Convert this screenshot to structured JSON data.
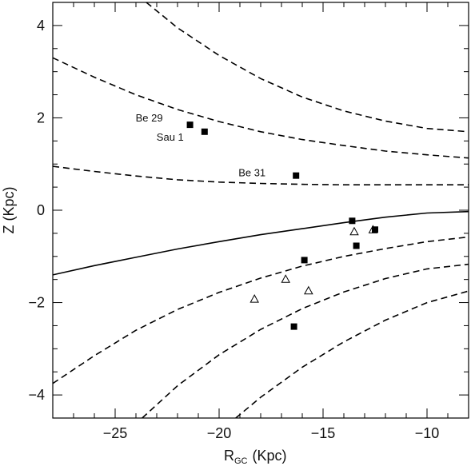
{
  "chart_data": {
    "type": "scatter",
    "x_axis": {
      "label_main": "R",
      "label_sub": "GC",
      "label_unit": "(Kpc)",
      "range": [
        -28,
        -8
      ],
      "tick_labels": [
        "−25",
        "−20",
        "−15",
        "−10"
      ],
      "tick_values": [
        -25,
        -20,
        -15,
        -10
      ]
    },
    "y_axis": {
      "label": "Z (Kpc)",
      "range": [
        -4.5,
        4.5
      ],
      "tick_labels": [
        "4",
        "2",
        "0",
        "−2",
        "−4"
      ],
      "tick_values": [
        4,
        2,
        0,
        -2,
        -4
      ]
    },
    "grid": false,
    "series": [
      {
        "marker": "filled-square",
        "points": [
          {
            "x": -21.4,
            "y": 1.85,
            "label": "Be 29"
          },
          {
            "x": -20.7,
            "y": 1.7,
            "label": "Sau 1"
          },
          {
            "x": -16.3,
            "y": 0.75,
            "label": "Be 31"
          },
          {
            "x": -13.6,
            "y": -0.23,
            "label": ""
          },
          {
            "x": -12.5,
            "y": -0.42,
            "label": ""
          },
          {
            "x": -13.4,
            "y": -0.77,
            "label": ""
          },
          {
            "x": -15.9,
            "y": -1.08,
            "label": ""
          },
          {
            "x": -16.4,
            "y": -2.52,
            "label": ""
          }
        ]
      },
      {
        "marker": "open-triangle",
        "points": [
          {
            "x": -13.5,
            "y": -0.47
          },
          {
            "x": -12.6,
            "y": -0.43
          },
          {
            "x": -16.8,
            "y": -1.5
          },
          {
            "x": -15.7,
            "y": -1.75
          },
          {
            "x": -18.3,
            "y": -1.93
          }
        ]
      }
    ],
    "curves": [
      {
        "style": "solid",
        "points": [
          [
            -28,
            -1.4
          ],
          [
            -26,
            -1.2
          ],
          [
            -24,
            -1.02
          ],
          [
            -22,
            -0.84
          ],
          [
            -20,
            -0.68
          ],
          [
            -18,
            -0.53
          ],
          [
            -16,
            -0.4
          ],
          [
            -14,
            -0.27
          ],
          [
            -12,
            -0.15
          ],
          [
            -10,
            -0.06
          ],
          [
            -8,
            -0.03
          ]
        ]
      },
      {
        "style": "dashed",
        "points": [
          [
            -28,
            0.95
          ],
          [
            -26,
            0.84
          ],
          [
            -24,
            0.74
          ],
          [
            -22,
            0.66
          ],
          [
            -20,
            0.61
          ],
          [
            -18,
            0.58
          ],
          [
            -16,
            0.56
          ],
          [
            -14,
            0.55
          ],
          [
            -12,
            0.55
          ],
          [
            -10,
            0.55
          ],
          [
            -8,
            0.55
          ]
        ]
      },
      {
        "style": "dashed",
        "points": [
          [
            -28,
            3.3
          ],
          [
            -26,
            2.88
          ],
          [
            -24,
            2.5
          ],
          [
            -22,
            2.18
          ],
          [
            -20,
            1.92
          ],
          [
            -18,
            1.7
          ],
          [
            -16,
            1.53
          ],
          [
            -14,
            1.4
          ],
          [
            -12,
            1.28
          ],
          [
            -10,
            1.2
          ],
          [
            -8,
            1.13
          ]
        ]
      },
      {
        "style": "dashed",
        "points": [
          [
            -23.5,
            4.5
          ],
          [
            -22,
            3.95
          ],
          [
            -20,
            3.35
          ],
          [
            -18,
            2.85
          ],
          [
            -16,
            2.45
          ],
          [
            -14,
            2.15
          ],
          [
            -12,
            1.93
          ],
          [
            -10,
            1.77
          ],
          [
            -8,
            1.7
          ]
        ]
      },
      {
        "style": "dashed",
        "points": [
          [
            -28,
            -3.75
          ],
          [
            -26,
            -3.15
          ],
          [
            -24,
            -2.6
          ],
          [
            -22,
            -2.15
          ],
          [
            -20,
            -1.78
          ],
          [
            -18,
            -1.47
          ],
          [
            -16,
            -1.21
          ],
          [
            -14,
            -1.0
          ],
          [
            -12,
            -0.83
          ],
          [
            -10,
            -0.68
          ],
          [
            -8,
            -0.58
          ]
        ]
      },
      {
        "style": "dashed",
        "points": [
          [
            -23.7,
            -4.5
          ],
          [
            -22,
            -3.8
          ],
          [
            -20,
            -3.13
          ],
          [
            -18,
            -2.58
          ],
          [
            -16,
            -2.13
          ],
          [
            -14,
            -1.77
          ],
          [
            -12,
            -1.48
          ],
          [
            -10,
            -1.27
          ],
          [
            -8,
            -1.17
          ]
        ]
      },
      {
        "style": "dashed",
        "points": [
          [
            -19.2,
            -4.5
          ],
          [
            -18,
            -4.05
          ],
          [
            -16,
            -3.4
          ],
          [
            -14,
            -2.85
          ],
          [
            -12,
            -2.38
          ],
          [
            -10,
            -2.0
          ],
          [
            -8,
            -1.75
          ]
        ]
      }
    ]
  }
}
